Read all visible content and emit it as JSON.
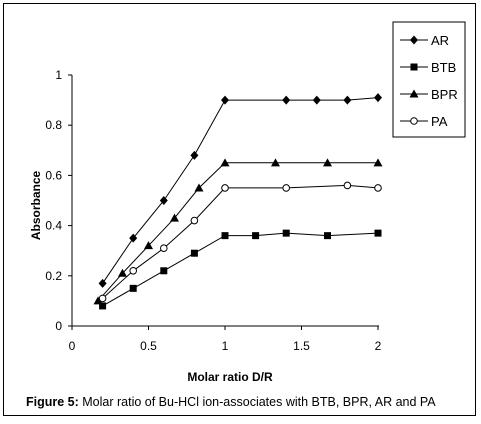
{
  "chart_data": {
    "type": "line",
    "xlabel": "Molar ratio D/R",
    "ylabel": "Absorbance",
    "xlim": [
      0,
      2
    ],
    "ylim": [
      0,
      1
    ],
    "xticks": [
      "0",
      "0.5",
      "1",
      "1.5",
      "2"
    ],
    "yticks": [
      "0",
      "0.2",
      "0.4",
      "0.6",
      "0.8",
      "1"
    ],
    "grid": false,
    "legend_position": "top-right",
    "series": [
      {
        "name": "AR",
        "marker": "diamond-filled",
        "x": [
          0.2,
          0.4,
          0.6,
          0.8,
          1.0,
          1.4,
          1.6,
          1.8,
          2.0
        ],
        "y": [
          0.17,
          0.35,
          0.5,
          0.68,
          0.9,
          0.9,
          0.9,
          0.9,
          0.91
        ]
      },
      {
        "name": "BTB",
        "marker": "square-filled",
        "x": [
          0.2,
          0.4,
          0.6,
          0.8,
          1.0,
          1.2,
          1.4,
          1.67,
          2.0
        ],
        "y": [
          0.08,
          0.15,
          0.22,
          0.29,
          0.36,
          0.36,
          0.37,
          0.36,
          0.37
        ]
      },
      {
        "name": "BPR",
        "marker": "triangle-filled",
        "x": [
          0.17,
          0.33,
          0.5,
          0.67,
          0.83,
          1.0,
          1.33,
          1.67,
          2.0
        ],
        "y": [
          0.1,
          0.21,
          0.32,
          0.43,
          0.55,
          0.65,
          0.65,
          0.65,
          0.65
        ]
      },
      {
        "name": "PA",
        "marker": "circle-open",
        "x": [
          0.2,
          0.4,
          0.6,
          0.8,
          1.0,
          1.4,
          1.8,
          2.0
        ],
        "y": [
          0.11,
          0.22,
          0.31,
          0.42,
          0.55,
          0.55,
          0.56,
          0.55
        ]
      }
    ]
  },
  "caption": {
    "label": "Figure 5:",
    "text": " Molar ratio of Bu-HCl ion-associates with BTB, BPR, AR and PA"
  }
}
